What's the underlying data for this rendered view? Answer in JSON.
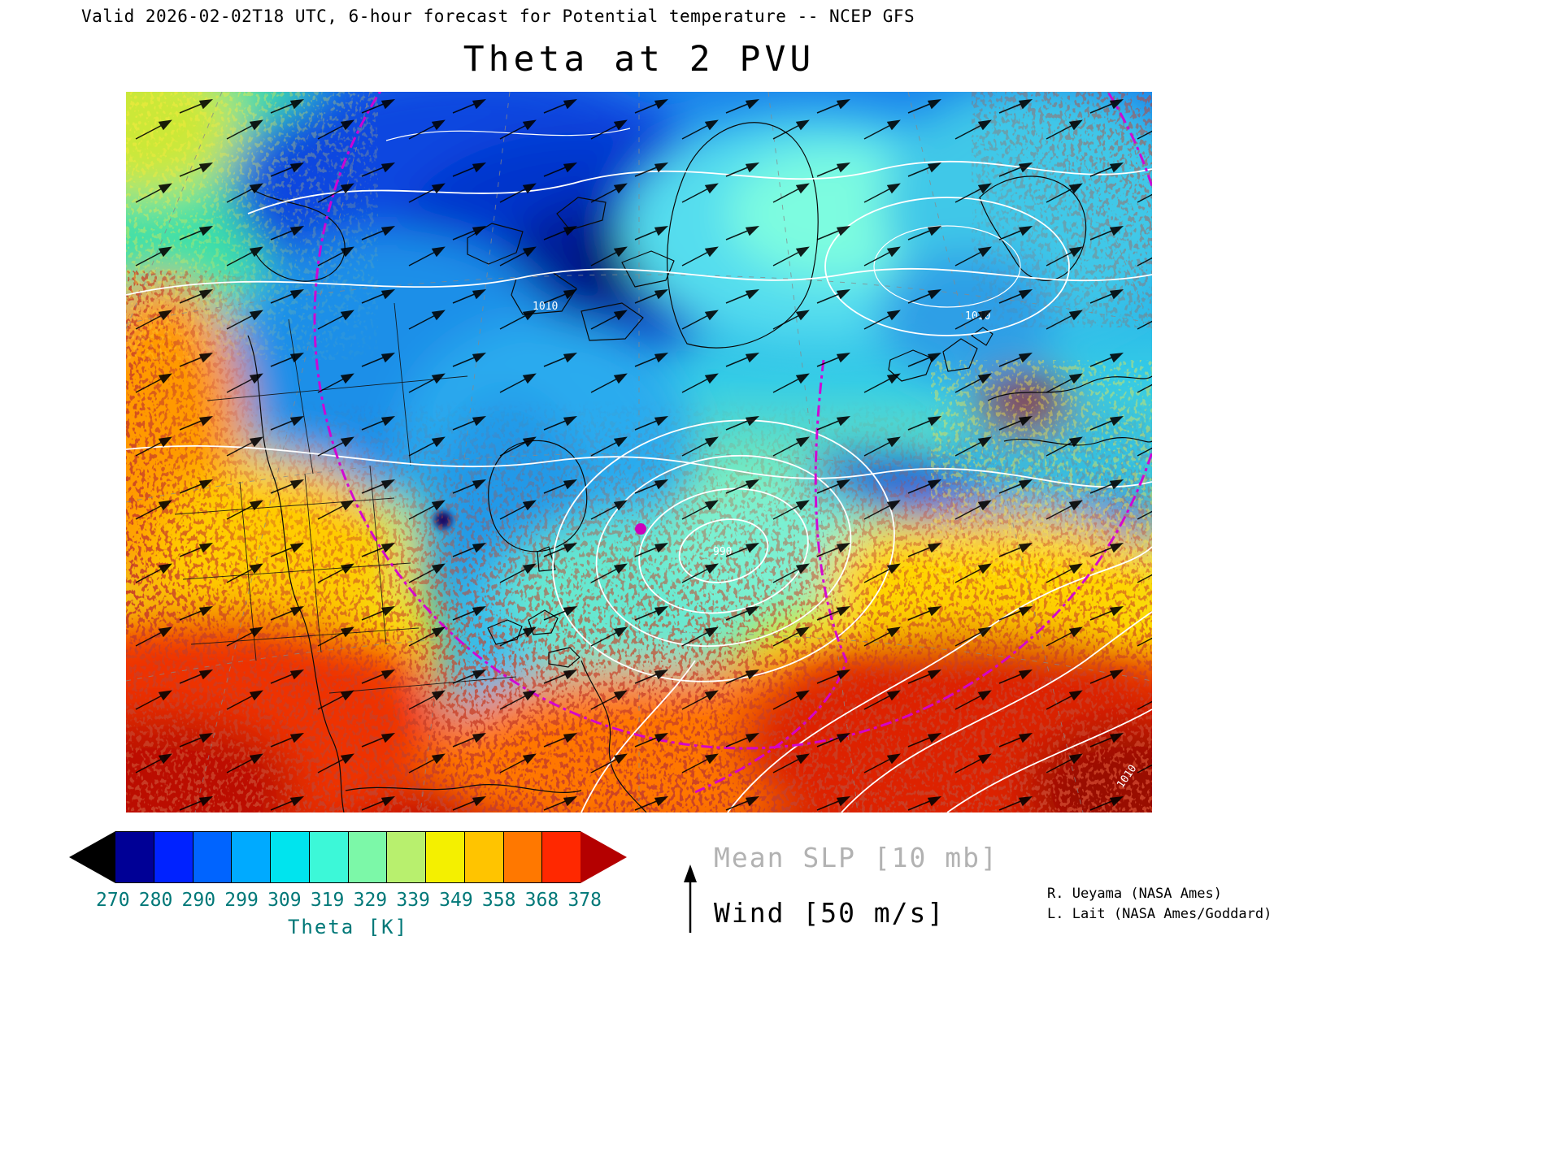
{
  "header": {
    "valid_line": "Valid 2026-02-02T18 UTC, 6-hour forecast for Potential temperature -- NCEP GFS",
    "title": "Theta at 2 PVU"
  },
  "map": {
    "slp_labels": [
      "1010",
      "1010",
      "990",
      "1010"
    ]
  },
  "colorbar": {
    "tick_labels": [
      "270",
      "280",
      "290",
      "299",
      "309",
      "319",
      "329",
      "339",
      "349",
      "358",
      "368",
      "378"
    ],
    "axis_label": "Theta [K]",
    "segment_colors": [
      "#000096",
      "#0022ff",
      "#0064ff",
      "#00aaff",
      "#00e4ee",
      "#3cf8d8",
      "#7cf8a8",
      "#b8f06e",
      "#f4f000",
      "#ffc400",
      "#ff7800",
      "#ff2800"
    ],
    "under_arrow_color": "#000000",
    "over_arrow_color": "#b40000",
    "label_color": "#007878"
  },
  "legend": {
    "slp_label": "Mean SLP [10 mb]",
    "wind_label": "Wind [50 m/s]"
  },
  "credits": {
    "line1": "R. Ueyama (NASA Ames)",
    "line2": "L. Lait (NASA Ames/Goddard)"
  },
  "chart_data": {
    "type": "heatmap",
    "title": "Theta at 2 PVU",
    "subtitle": "Valid 2026-02-02T18 UTC, 6-hour forecast for Potential temperature -- NCEP GFS",
    "field": "Potential temperature (Theta) on the 2 PVU potential-vorticity surface",
    "units": "K",
    "model": "NCEP GFS",
    "forecast": "6-hour forecast",
    "valid_time": "2026-02-02T18 UTC",
    "color_scale": {
      "label": "Theta [K]",
      "ticks": [
        270,
        280,
        290,
        299,
        309,
        319,
        329,
        339,
        349,
        358,
        368,
        378
      ],
      "colors": [
        "#000096",
        "#0022ff",
        "#0064ff",
        "#00aaff",
        "#00e4ee",
        "#3cf8d8",
        "#7cf8a8",
        "#b8f06e",
        "#f4f000",
        "#ffc400",
        "#ff7800",
        "#ff2800"
      ],
      "under_color": "#000000",
      "over_color": "#b40000"
    },
    "overlays": [
      {
        "name": "Mean SLP",
        "contour_interval": "10 mb",
        "style": "white contours",
        "visible_contour_labels": [
          "1010",
          "990",
          "1010",
          "1010"
        ]
      },
      {
        "name": "Wind",
        "reference_vector": "50 m/s",
        "style": "black arrows"
      },
      {
        "name": "terminator",
        "style": "magenta dash-dot curve"
      }
    ],
    "spatial_pattern": {
      "low_theta": "Deep blue / navy minimum (270-290 K) over the Arctic, northern Canada and Greenland",
      "mid_theta": "Cyan-aquamarine band (300-330 K) across mid-latitudes with a blue trough digging south over central and eastern North America",
      "high_theta": "Speckled yellow-orange-red maximum (340-378+ K) across the southern United States, subtropical Atlantic and lower map border",
      "slp_low": "Closed white SLP contours around a 990 mb low near the map center-south"
    }
  }
}
